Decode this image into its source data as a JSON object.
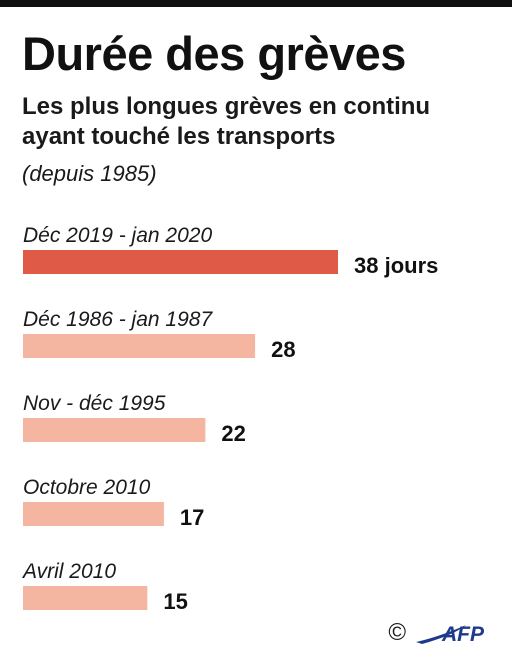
{
  "title": "Durée des grèves",
  "subtitle_lines": [
    "Les plus longues grèves en continu",
    "ayant touché les transports"
  ],
  "note": "(depuis 1985)",
  "colors": {
    "highlight": "#e05a48",
    "bar": "#f4b6a0",
    "text": "#111111"
  },
  "chart_data": {
    "type": "bar",
    "orientation": "horizontal",
    "categories": [
      "Déc 2019 - jan 2020",
      "Déc 1986 - jan 1987",
      "Nov - déc 1995",
      "Octobre 2010",
      "Avril 2010"
    ],
    "values": [
      38,
      28,
      22,
      17,
      15
    ],
    "value_labels": [
      "38 jours",
      "28",
      "22",
      "17",
      "15"
    ],
    "highlight_index": 0,
    "grid": false,
    "legend": "none"
  },
  "footer": {
    "copyright": "©",
    "logo_text": "AFP",
    "logo_icon": "afp-logo-icon"
  }
}
